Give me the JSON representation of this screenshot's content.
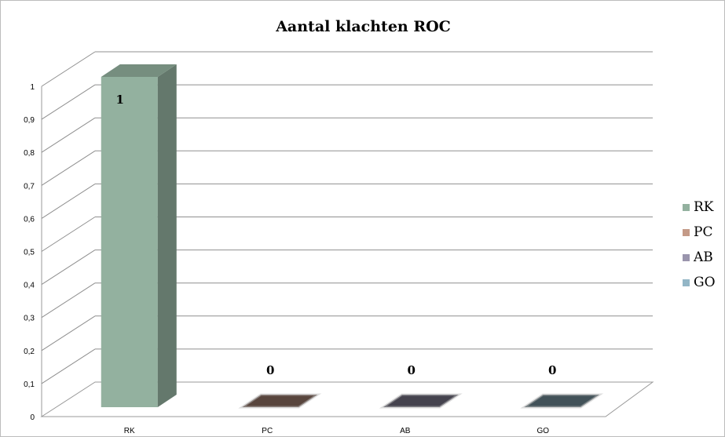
{
  "chart_data": {
    "type": "bar",
    "title": "Aantal klachten ROC",
    "categories": [
      "RK",
      "PC",
      "AB",
      "GO"
    ],
    "series": [
      {
        "name": "RK",
        "values": [
          1,
          null,
          null,
          null
        ],
        "color": "#93b19f"
      },
      {
        "name": "PC",
        "values": [
          null,
          0,
          null,
          null
        ],
        "color": "#c49a87"
      },
      {
        "name": "AB",
        "values": [
          null,
          null,
          0,
          null
        ],
        "color": "#9a95ad"
      },
      {
        "name": "GO",
        "values": [
          null,
          null,
          null,
          0
        ],
        "color": "#93b6c6"
      }
    ],
    "values": [
      1,
      0,
      0,
      0
    ],
    "data_labels": [
      "1",
      "0",
      "0",
      "0"
    ],
    "yticks": [
      "0",
      "0,1",
      "0,2",
      "0,3",
      "0,4",
      "0,5",
      "0,6",
      "0,7",
      "0,8",
      "0,9",
      "1"
    ],
    "ylim": [
      0,
      1
    ],
    "xlabel": "",
    "ylabel": "",
    "grid": true,
    "legend_position": "right",
    "style": "3d-column"
  }
}
